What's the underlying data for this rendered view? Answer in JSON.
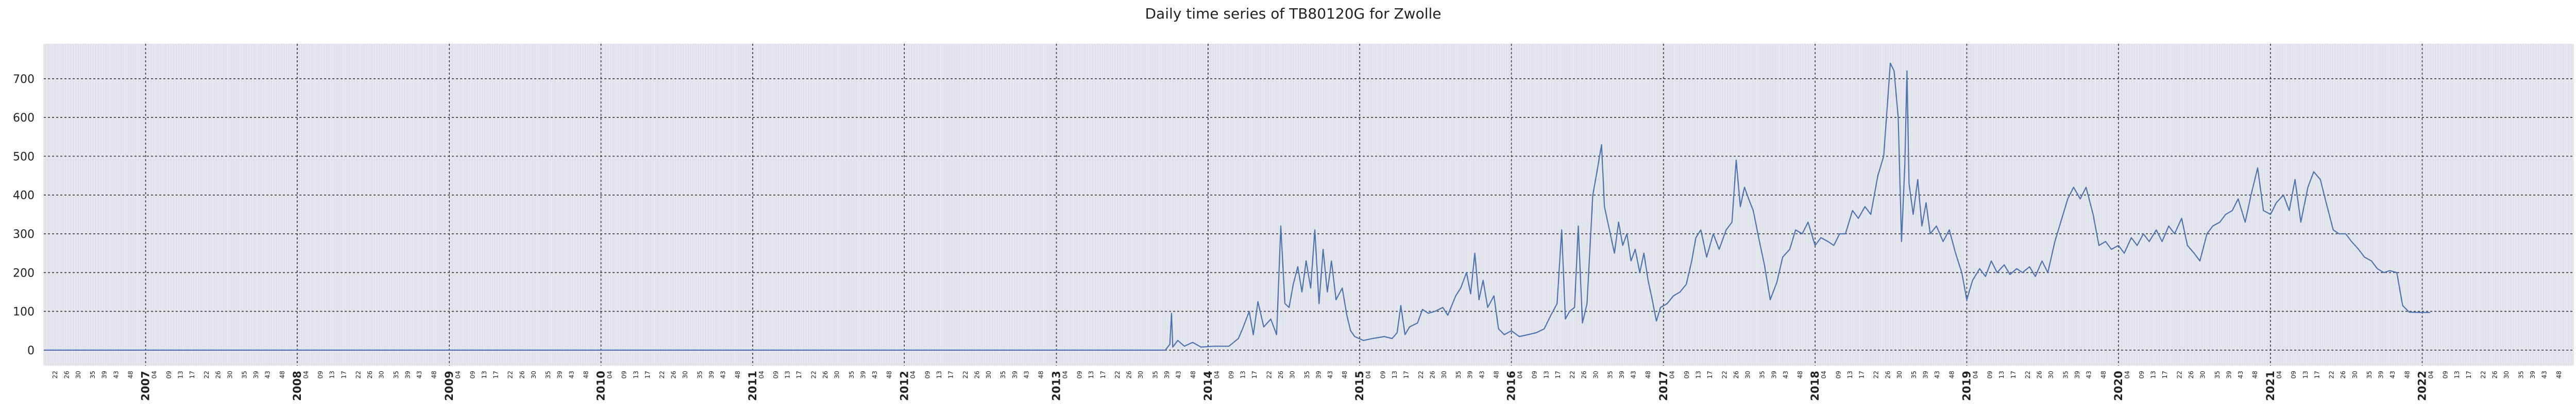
{
  "chart_data": {
    "type": "line",
    "title": "Daily time series of TB80120G for Zwolle",
    "xlabel": "",
    "ylabel": "",
    "x_range": [
      "2006-05-01",
      "2022-12-31"
    ],
    "ylim": [
      -40,
      790
    ],
    "y_ticks": [
      0,
      100,
      200,
      300,
      400,
      500,
      600,
      700
    ],
    "year_ticks": [
      "2007",
      "2008",
      "2009",
      "2010",
      "2011",
      "2012",
      "2013",
      "2014",
      "2015",
      "2016",
      "2017",
      "2018",
      "2019",
      "2020",
      "2021",
      "2022"
    ],
    "week_ticks": [
      4,
      9,
      13,
      17,
      22,
      26,
      30,
      35,
      39,
      43,
      48
    ],
    "grid": true,
    "colors": {
      "line": "#4c72b0",
      "background": "#eaeaf2",
      "major_grid": "#333333",
      "minor_grid": "#c9c9d6"
    },
    "series": [
      {
        "points": [
          [
            "2006-05-01",
            0
          ],
          [
            "2013-09-20",
            0
          ],
          [
            "2013-10-01",
            15
          ],
          [
            "2013-10-05",
            95
          ],
          [
            "2013-10-08",
            8
          ],
          [
            "2013-10-20",
            25
          ],
          [
            "2013-11-05",
            10
          ],
          [
            "2013-11-25",
            20
          ],
          [
            "2013-12-15",
            8
          ],
          [
            "2014-01-15",
            10
          ],
          [
            "2014-02-20",
            10
          ],
          [
            "2014-03-15",
            30
          ],
          [
            "2014-03-25",
            55
          ],
          [
            "2014-04-10",
            100
          ],
          [
            "2014-04-20",
            40
          ],
          [
            "2014-05-01",
            125
          ],
          [
            "2014-05-15",
            60
          ],
          [
            "2014-06-01",
            80
          ],
          [
            "2014-06-15",
            40
          ],
          [
            "2014-06-25",
            320
          ],
          [
            "2014-07-05",
            120
          ],
          [
            "2014-07-15",
            110
          ],
          [
            "2014-07-25",
            170
          ],
          [
            "2014-08-05",
            215
          ],
          [
            "2014-08-15",
            150
          ],
          [
            "2014-08-25",
            230
          ],
          [
            "2014-09-05",
            160
          ],
          [
            "2014-09-15",
            310
          ],
          [
            "2014-09-25",
            120
          ],
          [
            "2014-10-05",
            260
          ],
          [
            "2014-10-15",
            150
          ],
          [
            "2014-10-25",
            230
          ],
          [
            "2014-11-05",
            130
          ],
          [
            "2014-11-20",
            160
          ],
          [
            "2014-12-01",
            90
          ],
          [
            "2014-12-10",
            50
          ],
          [
            "2014-12-20",
            35
          ],
          [
            "2015-01-10",
            25
          ],
          [
            "2015-02-01",
            30
          ],
          [
            "2015-03-01",
            35
          ],
          [
            "2015-03-20",
            30
          ],
          [
            "2015-04-01",
            45
          ],
          [
            "2015-04-10",
            115
          ],
          [
            "2015-04-20",
            40
          ],
          [
            "2015-05-01",
            60
          ],
          [
            "2015-05-20",
            70
          ],
          [
            "2015-06-01",
            105
          ],
          [
            "2015-06-15",
            95
          ],
          [
            "2015-07-01",
            100
          ],
          [
            "2015-07-20",
            110
          ],
          [
            "2015-08-01",
            90
          ],
          [
            "2015-08-20",
            140
          ],
          [
            "2015-09-01",
            160
          ],
          [
            "2015-09-15",
            200
          ],
          [
            "2015-09-25",
            145
          ],
          [
            "2015-10-05",
            250
          ],
          [
            "2015-10-15",
            130
          ],
          [
            "2015-10-25",
            180
          ],
          [
            "2015-11-05",
            110
          ],
          [
            "2015-11-20",
            140
          ],
          [
            "2015-12-01",
            55
          ],
          [
            "2015-12-15",
            40
          ],
          [
            "2016-01-01",
            50
          ],
          [
            "2016-01-20",
            35
          ],
          [
            "2016-02-10",
            40
          ],
          [
            "2016-03-01",
            45
          ],
          [
            "2016-03-20",
            55
          ],
          [
            "2016-04-05",
            90
          ],
          [
            "2016-04-20",
            120
          ],
          [
            "2016-05-01",
            310
          ],
          [
            "2016-05-10",
            80
          ],
          [
            "2016-05-20",
            100
          ],
          [
            "2016-06-01",
            110
          ],
          [
            "2016-06-10",
            320
          ],
          [
            "2016-06-20",
            70
          ],
          [
            "2016-07-01",
            120
          ],
          [
            "2016-07-15",
            400
          ],
          [
            "2016-07-25",
            460
          ],
          [
            "2016-08-05",
            530
          ],
          [
            "2016-08-12",
            370
          ],
          [
            "2016-08-22",
            320
          ],
          [
            "2016-09-05",
            250
          ],
          [
            "2016-09-15",
            330
          ],
          [
            "2016-09-25",
            270
          ],
          [
            "2016-10-05",
            300
          ],
          [
            "2016-10-15",
            230
          ],
          [
            "2016-10-25",
            260
          ],
          [
            "2016-11-05",
            200
          ],
          [
            "2016-11-15",
            250
          ],
          [
            "2016-11-25",
            180
          ],
          [
            "2016-12-05",
            130
          ],
          [
            "2016-12-15",
            75
          ],
          [
            "2016-12-25",
            110
          ],
          [
            "2017-01-10",
            120
          ],
          [
            "2017-01-25",
            140
          ],
          [
            "2017-02-10",
            150
          ],
          [
            "2017-02-25",
            170
          ],
          [
            "2017-03-10",
            230
          ],
          [
            "2017-03-20",
            290
          ],
          [
            "2017-04-01",
            310
          ],
          [
            "2017-04-15",
            240
          ],
          [
            "2017-05-01",
            300
          ],
          [
            "2017-05-15",
            260
          ],
          [
            "2017-06-01",
            310
          ],
          [
            "2017-06-15",
            330
          ],
          [
            "2017-06-25",
            490
          ],
          [
            "2017-07-05",
            370
          ],
          [
            "2017-07-15",
            420
          ],
          [
            "2017-07-25",
            390
          ],
          [
            "2017-08-05",
            360
          ],
          [
            "2017-08-20",
            280
          ],
          [
            "2017-09-01",
            220
          ],
          [
            "2017-09-15",
            130
          ],
          [
            "2017-10-01",
            175
          ],
          [
            "2017-10-15",
            240
          ],
          [
            "2017-11-01",
            260
          ],
          [
            "2017-11-15",
            310
          ],
          [
            "2017-12-01",
            300
          ],
          [
            "2017-12-15",
            330
          ],
          [
            "2018-01-01",
            270
          ],
          [
            "2018-01-15",
            290
          ],
          [
            "2018-02-01",
            280
          ],
          [
            "2018-02-15",
            270
          ],
          [
            "2018-03-01",
            300
          ],
          [
            "2018-03-15",
            300
          ],
          [
            "2018-04-01",
            360
          ],
          [
            "2018-04-15",
            340
          ],
          [
            "2018-05-01",
            370
          ],
          [
            "2018-05-15",
            350
          ],
          [
            "2018-06-01",
            450
          ],
          [
            "2018-06-15",
            500
          ],
          [
            "2018-06-25",
            650
          ],
          [
            "2018-07-01",
            740
          ],
          [
            "2018-07-10",
            720
          ],
          [
            "2018-07-20",
            600
          ],
          [
            "2018-07-28",
            280
          ],
          [
            "2018-08-05",
            480
          ],
          [
            "2018-08-10",
            720
          ],
          [
            "2018-08-15",
            430
          ],
          [
            "2018-08-25",
            350
          ],
          [
            "2018-09-05",
            440
          ],
          [
            "2018-09-15",
            320
          ],
          [
            "2018-09-25",
            380
          ],
          [
            "2018-10-05",
            300
          ],
          [
            "2018-10-20",
            320
          ],
          [
            "2018-11-05",
            280
          ],
          [
            "2018-11-20",
            310
          ],
          [
            "2018-12-05",
            250
          ],
          [
            "2018-12-20",
            200
          ],
          [
            "2019-01-01",
            130
          ],
          [
            "2019-01-15",
            180
          ],
          [
            "2019-02-01",
            210
          ],
          [
            "2019-02-15",
            190
          ],
          [
            "2019-03-01",
            230
          ],
          [
            "2019-03-15",
            200
          ],
          [
            "2019-04-01",
            220
          ],
          [
            "2019-04-15",
            195
          ],
          [
            "2019-05-01",
            210
          ],
          [
            "2019-05-15",
            200
          ],
          [
            "2019-06-01",
            215
          ],
          [
            "2019-06-15",
            190
          ],
          [
            "2019-07-01",
            230
          ],
          [
            "2019-07-15",
            200
          ],
          [
            "2019-08-01",
            280
          ],
          [
            "2019-08-15",
            330
          ],
          [
            "2019-09-01",
            390
          ],
          [
            "2019-09-15",
            420
          ],
          [
            "2019-10-01",
            390
          ],
          [
            "2019-10-15",
            420
          ],
          [
            "2019-11-01",
            350
          ],
          [
            "2019-11-15",
            270
          ],
          [
            "2019-12-01",
            280
          ],
          [
            "2019-12-15",
            260
          ],
          [
            "2020-01-01",
            270
          ],
          [
            "2020-01-15",
            250
          ],
          [
            "2020-02-01",
            290
          ],
          [
            "2020-02-15",
            270
          ],
          [
            "2020-03-01",
            300
          ],
          [
            "2020-03-15",
            280
          ],
          [
            "2020-04-01",
            310
          ],
          [
            "2020-04-15",
            280
          ],
          [
            "2020-05-01",
            320
          ],
          [
            "2020-05-15",
            300
          ],
          [
            "2020-06-01",
            340
          ],
          [
            "2020-06-15",
            270
          ],
          [
            "2020-07-01",
            250
          ],
          [
            "2020-07-15",
            230
          ],
          [
            "2020-08-01",
            300
          ],
          [
            "2020-08-15",
            320
          ],
          [
            "2020-09-01",
            330
          ],
          [
            "2020-09-15",
            350
          ],
          [
            "2020-10-01",
            360
          ],
          [
            "2020-10-15",
            390
          ],
          [
            "2020-11-01",
            330
          ],
          [
            "2020-11-15",
            400
          ],
          [
            "2020-12-01",
            470
          ],
          [
            "2020-12-15",
            360
          ],
          [
            "2021-01-01",
            350
          ],
          [
            "2021-01-15",
            380
          ],
          [
            "2021-02-01",
            400
          ],
          [
            "2021-02-15",
            360
          ],
          [
            "2021-03-01",
            440
          ],
          [
            "2021-03-15",
            330
          ],
          [
            "2021-04-01",
            420
          ],
          [
            "2021-04-15",
            460
          ],
          [
            "2021-05-01",
            440
          ],
          [
            "2021-05-15",
            380
          ],
          [
            "2021-06-01",
            310
          ],
          [
            "2021-06-15",
            300
          ],
          [
            "2021-07-01",
            300
          ],
          [
            "2021-07-15",
            280
          ],
          [
            "2021-08-01",
            260
          ],
          [
            "2021-08-15",
            240
          ],
          [
            "2021-09-01",
            230
          ],
          [
            "2021-09-15",
            210
          ],
          [
            "2021-10-01",
            200
          ],
          [
            "2021-10-15",
            205
          ],
          [
            "2021-11-01",
            200
          ],
          [
            "2021-11-15",
            115
          ],
          [
            "2021-12-01",
            98
          ],
          [
            "2022-01-01",
            97
          ],
          [
            "2022-01-20",
            97
          ]
        ]
      }
    ]
  }
}
